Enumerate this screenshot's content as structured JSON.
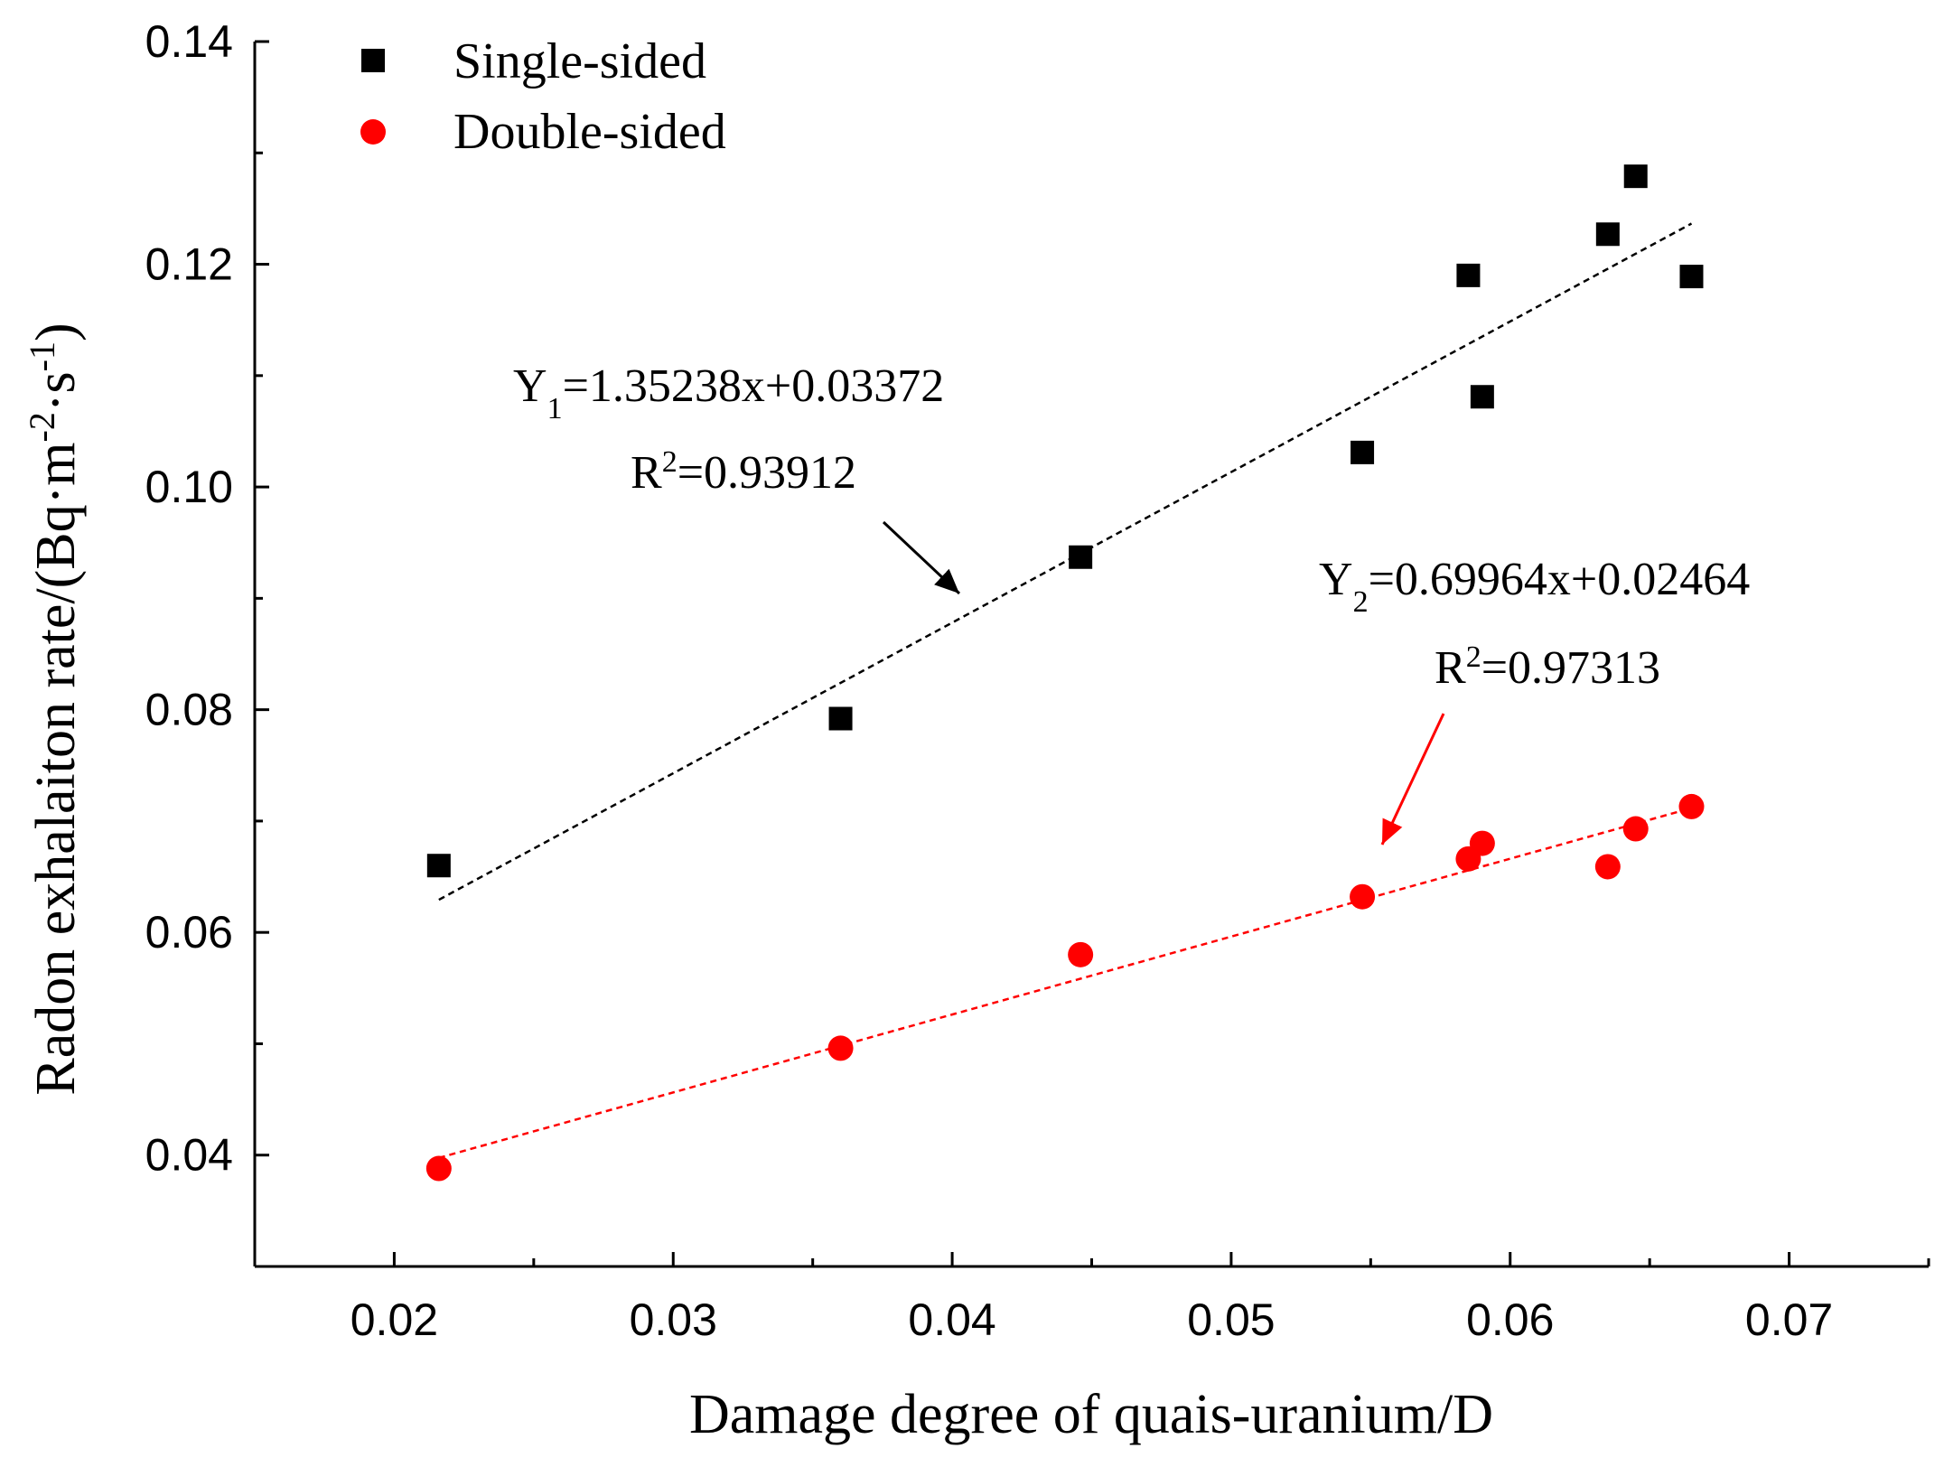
{
  "chart_data": {
    "type": "scatter",
    "title": "",
    "xlabel": "Damage degree of quais-uranium/D",
    "ylabel": {
      "prefix": "Radon exhalaiton rate/(Bq·m",
      "sup1": "-2",
      "middle": "·s",
      "sup2": "-1",
      "suffix": ")"
    },
    "xlim": [
      0.015,
      0.075
    ],
    "ylim": [
      0.03,
      0.14
    ],
    "x_ticks": [
      "0.02",
      "0.03",
      "0.04",
      "0.05",
      "0.06",
      "0.07"
    ],
    "y_ticks": [
      "0.04",
      "0.06",
      "0.08",
      "0.10",
      "0.12",
      "0.14"
    ],
    "grid": false,
    "legend_position": "top-left",
    "series": [
      {
        "name": "Single-sided",
        "marker": "square",
        "color": "#000000",
        "x": [
          0.0216,
          0.036,
          0.0446,
          0.0547,
          0.0585,
          0.059,
          0.0635,
          0.0645,
          0.0665
        ],
        "y": [
          0.066,
          0.0792,
          0.0937,
          0.1031,
          0.119,
          0.1081,
          0.1227,
          0.1279,
          0.1189
        ],
        "fit": {
          "slope": 1.35238,
          "intercept": 0.03372,
          "x_range": [
            0.0216,
            0.0665
          ]
        }
      },
      {
        "name": "Double-sided",
        "marker": "circle",
        "color": "#ff0000",
        "x": [
          0.0216,
          0.036,
          0.0446,
          0.0547,
          0.0585,
          0.059,
          0.0635,
          0.0645,
          0.0665
        ],
        "y": [
          0.0388,
          0.0496,
          0.058,
          0.0632,
          0.0666,
          0.068,
          0.0659,
          0.0693,
          0.0713
        ],
        "fit": {
          "slope": 0.69964,
          "intercept": 0.02464,
          "x_range": [
            0.0216,
            0.0665
          ]
        }
      }
    ],
    "annotations": [
      {
        "series": "Single-sided",
        "eq_main": "Y",
        "eq_sub": "1",
        "eq_rest": "=1.35238x+0.03372",
        "r2_prefix": "R",
        "r2_sup": "2",
        "r2_rest": "=0.93912",
        "color": "#000000"
      },
      {
        "series": "Double-sided",
        "eq_main": "Y",
        "eq_sub": "2",
        "eq_rest": "=0.69964x+0.02464",
        "r2_prefix": "R",
        "r2_sup": "2",
        "r2_rest": "=0.97313",
        "color": "#ff0000"
      }
    ]
  }
}
